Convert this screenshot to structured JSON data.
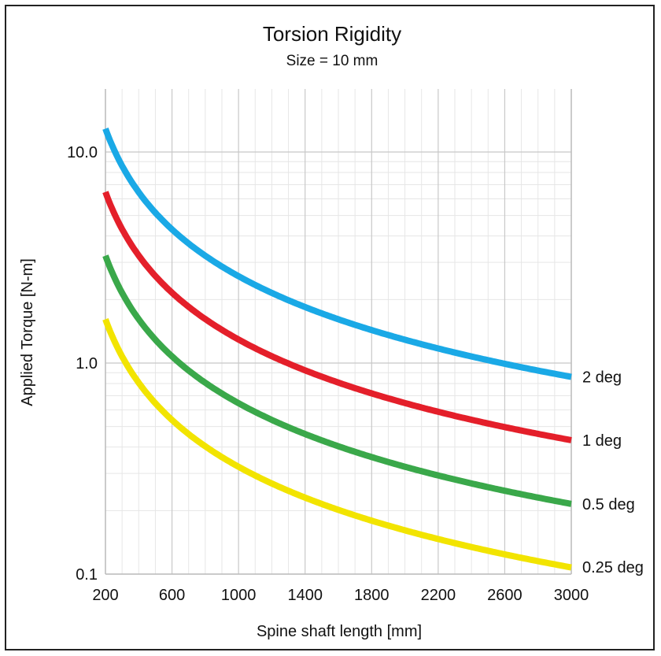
{
  "chart_data": {
    "type": "line",
    "title": "Torsion Rigidity",
    "subtitle": "Size = 10 mm",
    "xlabel": "Spine shaft length [mm]",
    "ylabel": "Applied Torque [N-m]",
    "xlim": [
      200,
      3000
    ],
    "ylim": [
      0.1,
      20
    ],
    "yscale": "log",
    "grid": true,
    "xticks": [
      200,
      600,
      1000,
      1400,
      1800,
      2200,
      2600,
      3000
    ],
    "xtick_labels": [
      "200",
      "600",
      "1000",
      "1400",
      "1800",
      "2200",
      "2600",
      "3000"
    ],
    "yticks": [
      0.1,
      1.0,
      10.0
    ],
    "ytick_labels": [
      "0.1",
      "1.0",
      "10.0"
    ],
    "x": [
      200,
      300,
      400,
      500,
      600,
      800,
      1000,
      1200,
      1400,
      1600,
      1800,
      2000,
      2200,
      2400,
      2600,
      2800,
      3000
    ],
    "series": [
      {
        "name": "2 deg",
        "color": "#1aa9e6",
        "values": [
          12.9,
          8.6,
          6.45,
          5.16,
          4.3,
          3.23,
          2.58,
          2.15,
          1.84,
          1.61,
          1.43,
          1.29,
          1.17,
          1.08,
          0.99,
          0.92,
          0.86
        ]
      },
      {
        "name": "1 deg",
        "color": "#e41f2a",
        "values": [
          6.45,
          4.3,
          3.23,
          2.58,
          2.15,
          1.61,
          1.29,
          1.08,
          0.92,
          0.81,
          0.72,
          0.65,
          0.59,
          0.54,
          0.5,
          0.46,
          0.43
        ]
      },
      {
        "name": "0.5 deg",
        "color": "#3aa84a",
        "values": [
          3.23,
          2.15,
          1.61,
          1.29,
          1.08,
          0.81,
          0.65,
          0.54,
          0.46,
          0.4,
          0.36,
          0.32,
          0.29,
          0.27,
          0.25,
          0.23,
          0.215
        ]
      },
      {
        "name": "0.25 deg",
        "color": "#f2e400",
        "values": [
          1.61,
          1.08,
          0.81,
          0.65,
          0.54,
          0.4,
          0.32,
          0.27,
          0.23,
          0.2,
          0.18,
          0.16,
          0.147,
          0.134,
          0.124,
          0.115,
          0.108
        ]
      }
    ]
  }
}
